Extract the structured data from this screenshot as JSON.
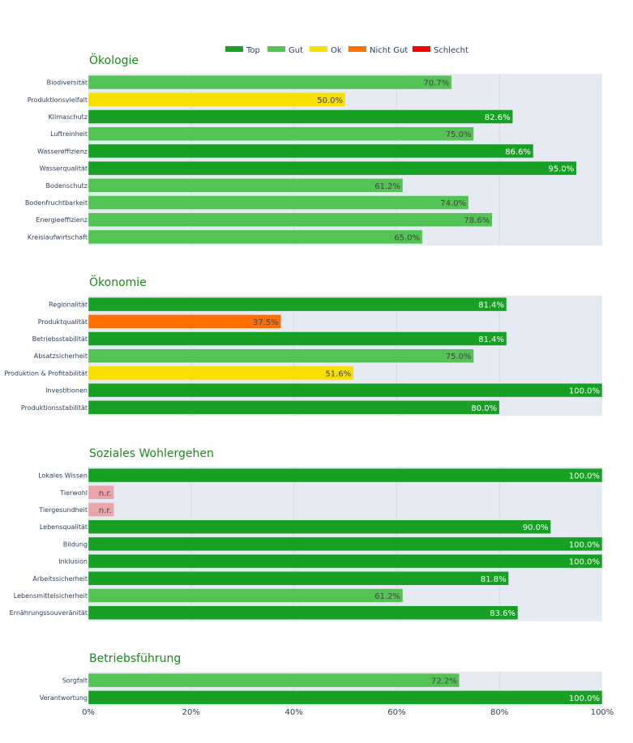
{
  "chart_data": {
    "type": "bar",
    "orientation": "horizontal",
    "xlim": [
      0,
      100
    ],
    "x_tick_labels": [
      "0%",
      "20%",
      "40%",
      "60%",
      "80%",
      "100%"
    ],
    "x_ticks": [
      0,
      20,
      40,
      60,
      80,
      100
    ],
    "grid": true,
    "legend": {
      "placement": "top-center",
      "entries": [
        {
          "name": "Top",
          "color": "#17a023"
        },
        {
          "name": "Gut",
          "color": "#53c353"
        },
        {
          "name": "Ok",
          "color": "#f7df00"
        },
        {
          "name": "Nicht Gut",
          "color": "#ff6e00"
        },
        {
          "name": "Schlecht",
          "color": "#ff0000"
        }
      ]
    },
    "na_color": "#eba4ab",
    "plot_bg": "#e5eaf3",
    "sections": [
      {
        "title": "Ökologie",
        "items": [
          {
            "category": "Biodiversität",
            "value": 70.7,
            "label": "70.7%",
            "rating": "Gut"
          },
          {
            "category": "Produktionsvielfalt",
            "value": 50.0,
            "label": "50.0%",
            "rating": "Ok"
          },
          {
            "category": "Klimaschutz",
            "value": 82.6,
            "label": "82.6%",
            "rating": "Top"
          },
          {
            "category": "Luftreinheit",
            "value": 75.0,
            "label": "75.0%",
            "rating": "Gut"
          },
          {
            "category": "Wassereffizienz",
            "value": 86.6,
            "label": "86.6%",
            "rating": "Top"
          },
          {
            "category": "Wasserqualität",
            "value": 95.0,
            "label": "95.0%",
            "rating": "Top"
          },
          {
            "category": "Bodenschutz",
            "value": 61.2,
            "label": "61.2%",
            "rating": "Gut"
          },
          {
            "category": "Bodenfruchtbarkeit",
            "value": 74.0,
            "label": "74.0%",
            "rating": "Gut"
          },
          {
            "category": "Energieeffizienz",
            "value": 78.6,
            "label": "78.6%",
            "rating": "Gut"
          },
          {
            "category": "Kreislaufwirtschaft",
            "value": 65.0,
            "label": "65.0%",
            "rating": "Gut"
          }
        ]
      },
      {
        "title": "Ökonomie",
        "items": [
          {
            "category": "Regionalität",
            "value": 81.4,
            "label": "81.4%",
            "rating": "Top"
          },
          {
            "category": "Produktqualität",
            "value": 37.5,
            "label": "37.5%",
            "rating": "Nicht Gut"
          },
          {
            "category": "Betriebsstabilität",
            "value": 81.4,
            "label": "81.4%",
            "rating": "Top"
          },
          {
            "category": "Absatzsicherheit",
            "value": 75.0,
            "label": "75.0%",
            "rating": "Gut"
          },
          {
            "category": "Produktion & Profitabilität",
            "value": 51.6,
            "label": "51.6%",
            "rating": "Ok"
          },
          {
            "category": "Investitionen",
            "value": 100.0,
            "label": "100.0%",
            "rating": "Top"
          },
          {
            "category": "Produktionsstabilität",
            "value": 80.0,
            "label": "80.0%",
            "rating": "Top"
          }
        ]
      },
      {
        "title": "Soziales Wohlergehen",
        "items": [
          {
            "category": "Lokales Wissen",
            "value": 100.0,
            "label": "100.0%",
            "rating": "Top"
          },
          {
            "category": "Tierwohl",
            "value": 5,
            "label": "n.r.",
            "rating": "n.r."
          },
          {
            "category": "Tiergesundheit",
            "value": 5,
            "label": "n.r.",
            "rating": "n.r."
          },
          {
            "category": "Lebensqualität",
            "value": 90.0,
            "label": "90.0%",
            "rating": "Top"
          },
          {
            "category": "Bildung",
            "value": 100.0,
            "label": "100.0%",
            "rating": "Top"
          },
          {
            "category": "Inklusion",
            "value": 100.0,
            "label": "100.0%",
            "rating": "Top"
          },
          {
            "category": "Arbeitssicherheit",
            "value": 81.8,
            "label": "81.8%",
            "rating": "Top"
          },
          {
            "category": "Lebensmittelsicherheit",
            "value": 61.2,
            "label": "61.2%",
            "rating": "Gut"
          },
          {
            "category": "Ernährungssouveränität",
            "value": 83.6,
            "label": "83.6%",
            "rating": "Top"
          }
        ]
      },
      {
        "title": "Betriebsführung",
        "items": [
          {
            "category": "Sorgfalt",
            "value": 72.2,
            "label": "72.2%",
            "rating": "Gut"
          },
          {
            "category": "Verantwortung",
            "value": 100.0,
            "label": "100.0%",
            "rating": "Top"
          }
        ]
      }
    ]
  }
}
